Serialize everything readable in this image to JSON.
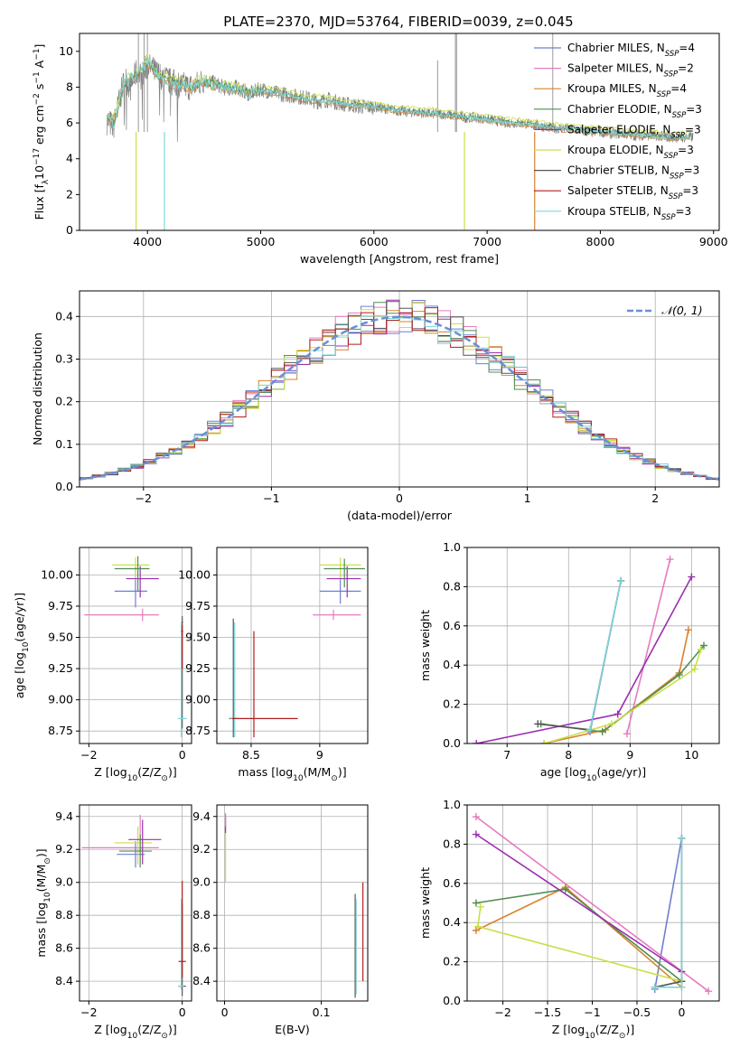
{
  "figure": {
    "title": "PLATE=2370, MJD=53764, FIBERID=0039, z=0.045"
  },
  "models": [
    {
      "label": "Chabrier MILES",
      "nssp": "4",
      "color": "#6f7fd0"
    },
    {
      "label": "Salpeter MILES",
      "nssp": "2",
      "color": "#e57bbf"
    },
    {
      "label": "Kroupa MILES",
      "nssp": "4",
      "color": "#d9812e"
    },
    {
      "label": "Chabrier ELODIE",
      "nssp": "3",
      "color": "#4f8f4f"
    },
    {
      "label": "Salpeter ELODIE",
      "nssp": "3",
      "color": "#9b2fb0"
    },
    {
      "label": "Kroupa ELODIE",
      "nssp": "3",
      "color": "#c8e04a"
    },
    {
      "label": "Chabrier STELIB",
      "nssp": "3",
      "color": "#555555"
    },
    {
      "label": "Salpeter STELIB",
      "nssp": "3",
      "color": "#b01f1f"
    },
    {
      "label": "Kroupa STELIB",
      "nssp": "3",
      "color": "#7fd6d6"
    }
  ],
  "chart_data": [
    {
      "id": "spectrum",
      "type": "line",
      "xlabel": "wavelength [Angstrom, rest frame]",
      "ylabel": "Flux [f_λ 10^-17 erg cm^-2 s^-1 A^-1]",
      "xlim": [
        3400,
        9050
      ],
      "ylim": [
        0,
        11
      ],
      "xticks": [
        4000,
        5000,
        6000,
        7000,
        8000,
        9000
      ],
      "yticks": [
        0,
        2,
        4,
        6,
        8,
        10
      ],
      "grid": false,
      "legend": "top-right",
      "series": [
        {
          "model": "data",
          "color": "#808080",
          "x": [
            3650,
            3700,
            3750,
            3800,
            3850,
            3900,
            3950,
            4000,
            4100,
            4200,
            4300,
            4400,
            4500,
            4600,
            4700,
            4800,
            4900,
            5000,
            5100,
            5200,
            5300,
            5400,
            5500,
            5600,
            5700,
            5800,
            5900,
            6000,
            6100,
            6200,
            6300,
            6400,
            6500,
            6600,
            6700,
            6800,
            6900,
            7000,
            7100,
            7200,
            7300,
            7400,
            7500,
            7600,
            7700,
            7800,
            7900,
            8000,
            8100,
            8200,
            8300,
            8400,
            8500,
            8600,
            8700,
            8800
          ],
          "y": [
            6.1,
            5.8,
            7.2,
            8.5,
            8.0,
            8.8,
            8.6,
            9.2,
            8.7,
            8.3,
            8.1,
            8.0,
            8.4,
            8.2,
            7.9,
            8.0,
            7.6,
            7.9,
            7.7,
            7.6,
            7.5,
            7.4,
            7.2,
            7.3,
            7.1,
            7.0,
            6.9,
            6.9,
            6.8,
            6.7,
            6.6,
            6.6,
            6.5,
            6.5,
            6.4,
            6.3,
            6.3,
            6.2,
            6.1,
            6.0,
            6.0,
            5.9,
            5.8,
            5.7,
            5.7,
            5.6,
            5.5,
            5.5,
            5.4,
            5.4,
            5.3,
            5.3,
            5.3,
            5.2,
            5.2,
            5.2
          ]
        },
        {
          "model": "Kroupa STELIB",
          "color": "#7fd6d6",
          "x": [
            3650,
            3700,
            3750,
            3800,
            3900,
            4000,
            4100,
            4200,
            4300,
            4400,
            4500,
            4600,
            4700,
            4800,
            4900,
            5000,
            5200,
            5400,
            5600,
            5800,
            6000,
            6200,
            6400,
            6600,
            6800,
            7000,
            7200,
            7400,
            7600,
            7800,
            8000,
            8200,
            8400,
            8600,
            8800
          ],
          "y": [
            6.2,
            5.9,
            7.0,
            8.3,
            8.6,
            9.4,
            8.6,
            8.3,
            8.1,
            8.0,
            8.3,
            8.1,
            7.9,
            7.9,
            7.6,
            7.8,
            7.6,
            7.3,
            7.2,
            7.0,
            6.9,
            6.7,
            6.6,
            6.5,
            6.3,
            6.2,
            6.0,
            5.9,
            5.7,
            5.6,
            5.5,
            5.4,
            5.3,
            5.2,
            5.2
          ]
        }
      ]
    },
    {
      "id": "residuals",
      "type": "line",
      "xlabel": "(data-model)/error",
      "ylabel": "Normed distribution",
      "xlim": [
        -2.5,
        2.5
      ],
      "ylim": [
        0,
        0.46
      ],
      "xticks": [
        -2,
        -1,
        0,
        1,
        2
      ],
      "yticks": [
        0.0,
        0.1,
        0.2,
        0.3,
        0.4
      ],
      "grid": true,
      "legend": "top-right",
      "reference": {
        "label": "𝒩(0, 1)",
        "color": "#6a8fd6",
        "mean": 0,
        "sigma": 1
      },
      "bins": {
        "start": -2.5,
        "width": 0.1,
        "count": 50
      }
    },
    {
      "id": "age-vs-Z",
      "type": "scatter",
      "xlabel": "Z [log10(Z/Z⊙)]",
      "ylabel": "age  [log10(age/yr)]",
      "xlim": [
        -2.2,
        0.2
      ],
      "ylim": [
        8.65,
        10.22
      ],
      "xticks": [
        -2,
        0
      ],
      "yticks": [
        8.75,
        9.0,
        9.25,
        9.5,
        9.75,
        10.0
      ],
      "grid": true,
      "points": [
        {
          "model": "Salpeter MILES",
          "x": -0.85,
          "y": 9.68,
          "xerr": [
            1.25,
            0.35
          ],
          "yerr": [
            0.05,
            0.05
          ]
        },
        {
          "model": "Chabrier MILES",
          "x": -1.0,
          "y": 9.87,
          "xerr": [
            0.45,
            0.25
          ],
          "yerr": [
            0.13,
            0.2
          ]
        },
        {
          "model": "Kroupa ELODIE",
          "x": -1.0,
          "y": 10.08,
          "xerr": [
            0.5,
            0.3
          ],
          "yerr": [
            0.12,
            0.06
          ]
        },
        {
          "model": "Salpeter ELODIE",
          "x": -0.9,
          "y": 9.97,
          "xerr": [
            0.3,
            0.4
          ],
          "yerr": [
            0.15,
            0.1
          ]
        },
        {
          "model": "Chabrier ELODIE",
          "x": -0.95,
          "y": 10.05,
          "xerr": [
            0.5,
            0.25
          ],
          "yerr": [
            0.18,
            0.1
          ]
        },
        {
          "model": "Chabrier STELIB",
          "x": 0.0,
          "y": 9.62,
          "xerr": [
            0.02,
            0.02
          ],
          "yerr": [
            0.85,
            0.05
          ]
        },
        {
          "model": "Kroupa STELIB",
          "x": -0.02,
          "y": 8.85,
          "xerr": [
            0.08,
            0.12
          ],
          "yerr": [
            0.15,
            0.77
          ]
        },
        {
          "model": "Salpeter STELIB",
          "x": 0.0,
          "y": 9.55,
          "xerr": [
            0.02,
            0.02
          ],
          "yerr": [
            0.3,
            0.05
          ]
        }
      ]
    },
    {
      "id": "age-vs-mass",
      "type": "scatter",
      "xlabel": "mass [log10(M/M⊙)]",
      "ylabel": "",
      "xlim": [
        8.25,
        9.35
      ],
      "ylim": [
        8.65,
        10.22
      ],
      "xticks": [
        8.5,
        9.0
      ],
      "yticks": [
        8.75,
        9.0,
        9.25,
        9.5,
        9.75,
        10.0
      ],
      "grid": true,
      "points": [
        {
          "model": "Salpeter MILES",
          "x": 9.1,
          "y": 9.68,
          "xerr": [
            0.15,
            0.2
          ],
          "yerr": [
            0.04,
            0.04
          ]
        },
        {
          "model": "Chabrier MILES",
          "x": 9.15,
          "y": 9.87,
          "xerr": [
            0.15,
            0.15
          ],
          "yerr": [
            0.1,
            0.15
          ]
        },
        {
          "model": "Kroupa ELODIE",
          "x": 9.15,
          "y": 10.08,
          "xerr": [
            0.15,
            0.15
          ],
          "yerr": [
            0.12,
            0.06
          ]
        },
        {
          "model": "Salpeter ELODIE",
          "x": 9.2,
          "y": 9.97,
          "xerr": [
            0.15,
            0.1
          ],
          "yerr": [
            0.15,
            0.1
          ]
        },
        {
          "model": "Chabrier ELODIE",
          "x": 9.18,
          "y": 10.05,
          "xerr": [
            0.15,
            0.15
          ],
          "yerr": [
            0.15,
            0.08
          ]
        },
        {
          "model": "Chabrier STELIB",
          "x": 8.37,
          "y": 8.85,
          "xerr": [
            0.03,
            0.03
          ],
          "yerr": [
            0.15,
            0.8
          ]
        },
        {
          "model": "Kroupa STELIB",
          "x": 8.38,
          "y": 8.85,
          "xerr": [
            0.03,
            0.03
          ],
          "yerr": [
            0.15,
            0.77
          ]
        },
        {
          "model": "Salpeter STELIB",
          "x": 8.52,
          "y": 8.85,
          "xerr": [
            0.16,
            0.32
          ],
          "yerr": [
            0.15,
            0.7
          ]
        }
      ]
    },
    {
      "id": "mass-weight-vs-age",
      "type": "line",
      "xlabel": "age  [log10(age/yr)]",
      "ylabel": "mass weight",
      "xlim": [
        6.35,
        10.45
      ],
      "ylim": [
        0,
        1.0
      ],
      "xticks": [
        7,
        8,
        9,
        10
      ],
      "yticks": [
        0.0,
        0.2,
        0.4,
        0.6,
        0.8,
        1.0
      ],
      "grid": true,
      "series": [
        {
          "model": "Chabrier MILES",
          "x": [
            8.35,
            8.85
          ],
          "y": [
            0.06,
            0.83
          ]
        },
        {
          "model": "Salpeter MILES",
          "x": [
            8.95,
            9.65
          ],
          "y": [
            0.05,
            0.94
          ]
        },
        {
          "model": "Kroupa MILES",
          "x": [
            7.6,
            8.6,
            9.8,
            9.95
          ],
          "y": [
            0.0,
            0.07,
            0.36,
            0.58
          ]
        },
        {
          "model": "Chabrier ELODIE",
          "x": [
            7.55,
            8.55,
            9.8,
            10.2
          ],
          "y": [
            0.1,
            0.06,
            0.35,
            0.5
          ]
        },
        {
          "model": "Salpeter ELODIE",
          "x": [
            6.5,
            8.8,
            10.0
          ],
          "y": [
            0.0,
            0.15,
            0.85
          ]
        },
        {
          "model": "Kroupa ELODIE",
          "x": [
            7.6,
            8.7,
            10.05,
            10.15
          ],
          "y": [
            0.0,
            0.1,
            0.38,
            0.48
          ]
        },
        {
          "model": "Chabrier STELIB",
          "x": [
            7.5,
            8.35,
            8.85
          ],
          "y": [
            0.1,
            0.07,
            0.83
          ]
        },
        {
          "model": "Kroupa STELIB",
          "x": [
            8.35,
            8.85
          ],
          "y": [
            0.07,
            0.83
          ]
        }
      ]
    },
    {
      "id": "mass-vs-Z",
      "type": "scatter",
      "xlabel": "Z [log10(Z/Z⊙)]",
      "ylabel": "mass [log10(M/M⊙)]",
      "xlim": [
        -2.2,
        0.2
      ],
      "ylim": [
        8.28,
        9.47
      ],
      "xticks": [
        -2,
        0
      ],
      "yticks": [
        8.4,
        8.6,
        8.8,
        9.0,
        9.2,
        9.4
      ],
      "grid": true,
      "points": [
        {
          "model": "Salpeter MILES",
          "x": -0.9,
          "y": 9.21,
          "xerr": [
            1.25,
            0.4
          ],
          "yerr": [
            0.03,
            0.2
          ]
        },
        {
          "model": "Chabrier MILES",
          "x": -1.0,
          "y": 9.17,
          "xerr": [
            0.4,
            0.2
          ],
          "yerr": [
            0.08,
            0.08
          ]
        },
        {
          "model": "Kroupa ELODIE",
          "x": -0.95,
          "y": 9.24,
          "xerr": [
            0.5,
            0.3
          ],
          "yerr": [
            0.13,
            0.1
          ]
        },
        {
          "model": "Salpeter ELODIE",
          "x": -0.85,
          "y": 9.26,
          "xerr": [
            0.3,
            0.4
          ],
          "yerr": [
            0.15,
            0.12
          ]
        },
        {
          "model": "Chabrier ELODIE",
          "x": -0.9,
          "y": 9.19,
          "xerr": [
            0.45,
            0.25
          ],
          "yerr": [
            0.1,
            0.1
          ]
        },
        {
          "model": "Chabrier STELIB",
          "x": 0.0,
          "y": 8.37,
          "xerr": [
            0.08,
            0.08
          ],
          "yerr": [
            0.06,
            0.5
          ]
        },
        {
          "model": "Kroupa STELIB",
          "x": -0.02,
          "y": 8.37,
          "xerr": [
            0.05,
            0.05
          ],
          "yerr": [
            0.02,
            0.53
          ]
        },
        {
          "model": "Salpeter STELIB",
          "x": 0.0,
          "y": 8.52,
          "xerr": [
            0.08,
            0.08
          ],
          "yerr": [
            0.1,
            0.49
          ]
        }
      ]
    },
    {
      "id": "mass-vs-EBV",
      "type": "scatter",
      "xlabel": "E(B-V)",
      "ylabel": "",
      "xlim": [
        -0.008,
        0.148
      ],
      "ylim": [
        8.28,
        9.47
      ],
      "xticks": [
        0.0,
        0.1
      ],
      "yticks": [
        8.4,
        8.6,
        8.8,
        9.0,
        9.2,
        9.4
      ],
      "grid": true,
      "points": [
        {
          "model": "Salpeter ELODIE",
          "x": 0.001,
          "y": 9.35,
          "xerr": [
            0,
            0
          ],
          "yerr": [
            0.05,
            0.05
          ]
        },
        {
          "model": "Kroupa ELODIE",
          "x": 0.001,
          "y": 9.15,
          "xerr": [
            0,
            0
          ],
          "yerr": [
            0.15,
            0.15
          ]
        },
        {
          "model": "Salpeter MILES",
          "x": 0.001,
          "y": 9.38,
          "xerr": [
            0,
            0
          ],
          "yerr": [
            0.04,
            0.04
          ]
        },
        {
          "model": "Chabrier STELIB",
          "x": 0.135,
          "y": 8.6,
          "xerr": [
            0,
            0
          ],
          "yerr": [
            0.3,
            0.33
          ]
        },
        {
          "model": "Kroupa STELIB",
          "x": 0.136,
          "y": 8.6,
          "xerr": [
            0,
            0
          ],
          "yerr": [
            0.28,
            0.3
          ]
        },
        {
          "model": "Salpeter STELIB",
          "x": 0.143,
          "y": 8.7,
          "xerr": [
            0,
            0
          ],
          "yerr": [
            0.3,
            0.3
          ]
        }
      ]
    },
    {
      "id": "mass-weight-vs-Z",
      "type": "line",
      "xlabel": "Z [log10(Z/Z⊙)]",
      "ylabel": "mass weight",
      "xlim": [
        -2.4,
        0.42
      ],
      "ylim": [
        0,
        1.0
      ],
      "xticks": [
        -2.0,
        -1.5,
        -1.0,
        -0.5,
        0.0
      ],
      "yticks": [
        0.0,
        0.2,
        0.4,
        0.6,
        0.8,
        1.0
      ],
      "grid": true,
      "series": [
        {
          "model": "Chabrier MILES",
          "x": [
            -0.3,
            0.0
          ],
          "y": [
            0.06,
            0.83
          ]
        },
        {
          "model": "Salpeter MILES",
          "x": [
            -2.3,
            0.3
          ],
          "y": [
            0.94,
            0.05
          ]
        },
        {
          "model": "Kroupa MILES",
          "x": [
            -2.3,
            -1.3,
            0.0
          ],
          "y": [
            0.36,
            0.58,
            0.07
          ]
        },
        {
          "model": "Chabrier ELODIE",
          "x": [
            -2.3,
            -1.3,
            0.0
          ],
          "y": [
            0.5,
            0.57,
            0.1
          ]
        },
        {
          "model": "Salpeter ELODIE",
          "x": [
            -2.3,
            0.0
          ],
          "y": [
            0.85,
            0.15
          ]
        },
        {
          "model": "Kroupa ELODIE",
          "x": [
            -2.25,
            -2.28,
            0.0
          ],
          "y": [
            0.48,
            0.38,
            0.1
          ]
        },
        {
          "model": "Chabrier STELIB",
          "x": [
            -0.3,
            0.0,
            0.0
          ],
          "y": [
            0.07,
            0.1,
            0.83
          ]
        },
        {
          "model": "Kroupa STELIB",
          "x": [
            -0.3,
            0.0,
            0.0
          ],
          "y": [
            0.07,
            0.07,
            0.83
          ]
        }
      ]
    }
  ]
}
